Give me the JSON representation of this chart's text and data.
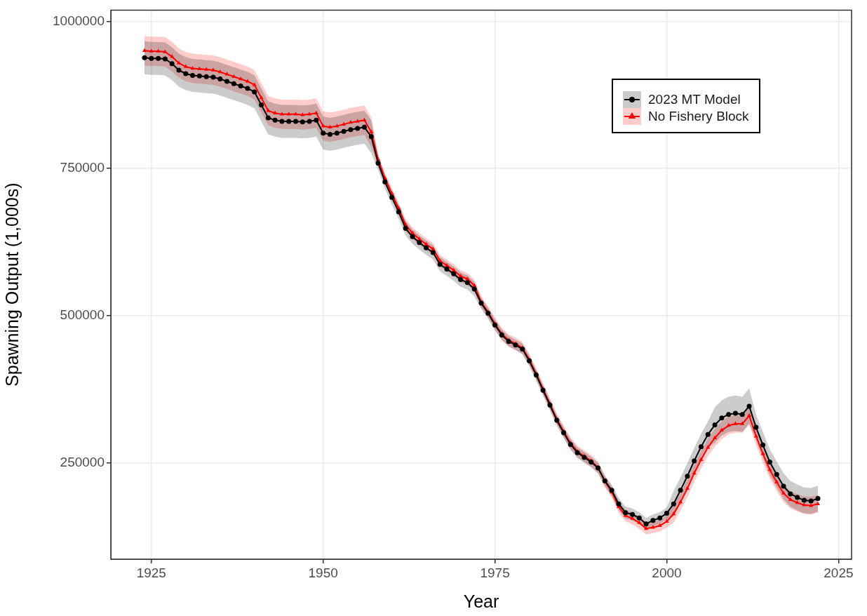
{
  "chart_data": {
    "type": "line",
    "xlabel": "Year",
    "ylabel": "Spawning Output (1,000s)",
    "x": [
      1924,
      1925,
      1926,
      1927,
      1928,
      1929,
      1930,
      1931,
      1932,
      1933,
      1934,
      1935,
      1936,
      1937,
      1938,
      1939,
      1940,
      1941,
      1942,
      1943,
      1944,
      1945,
      1946,
      1947,
      1948,
      1949,
      1950,
      1951,
      1952,
      1953,
      1954,
      1955,
      1956,
      1957,
      1958,
      1959,
      1960,
      1961,
      1962,
      1963,
      1964,
      1965,
      1966,
      1967,
      1968,
      1969,
      1970,
      1971,
      1972,
      1973,
      1974,
      1975,
      1976,
      1977,
      1978,
      1979,
      1980,
      1981,
      1982,
      1983,
      1984,
      1985,
      1986,
      1987,
      1988,
      1989,
      1990,
      1991,
      1992,
      1993,
      1994,
      1995,
      1996,
      1997,
      1998,
      1999,
      2000,
      2001,
      2002,
      2003,
      2004,
      2005,
      2006,
      2007,
      2008,
      2009,
      2010,
      2011,
      2012,
      2013,
      2014,
      2015,
      2016,
      2017,
      2018,
      2019,
      2020,
      2021,
      2022
    ],
    "series": [
      {
        "name": "2023 MT Model",
        "color": "#000000",
        "marker": "circle",
        "values": [
          938000,
          937000,
          937000,
          936000,
          928000,
          917000,
          911000,
          908000,
          907000,
          906000,
          905000,
          902000,
          898000,
          894000,
          890000,
          886000,
          880000,
          858000,
          836000,
          832000,
          830000,
          830000,
          830000,
          829000,
          830000,
          832000,
          810000,
          808000,
          810000,
          813000,
          816000,
          818000,
          820000,
          804000,
          759000,
          727000,
          701000,
          676000,
          648000,
          634000,
          624000,
          615000,
          607000,
          587000,
          579000,
          571000,
          561000,
          556000,
          545000,
          521000,
          504000,
          484000,
          467000,
          456000,
          450000,
          443000,
          423000,
          399000,
          373000,
          348000,
          322000,
          301000,
          281000,
          267000,
          259000,
          251000,
          241000,
          219000,
          203000,
          180000,
          165000,
          162000,
          156000,
          146000,
          152000,
          156000,
          164000,
          180000,
          203000,
          227000,
          253000,
          277000,
          298000,
          314000,
          326000,
          332000,
          334000,
          332000,
          346000,
          310000,
          280000,
          251000,
          230000,
          210000,
          197000,
          191000,
          186000,
          185000,
          189000
        ],
        "lower": [
          910000,
          909000,
          909000,
          908000,
          900000,
          889000,
          883000,
          880000,
          879000,
          878000,
          877000,
          874000,
          870000,
          866000,
          862000,
          858000,
          852000,
          830000,
          808000,
          804000,
          802000,
          802000,
          802000,
          801000,
          802000,
          804000,
          782000,
          780000,
          782000,
          785000,
          788000,
          790000,
          792000,
          776000,
          747000,
          715000,
          689000,
          664000,
          636000,
          622000,
          612000,
          603000,
          595000,
          575000,
          567000,
          559000,
          549000,
          544000,
          533000,
          512000,
          495000,
          475000,
          458000,
          447000,
          441000,
          434000,
          414000,
          390000,
          364000,
          339000,
          313000,
          292000,
          272000,
          258000,
          250000,
          242000,
          232000,
          210000,
          194000,
          170000,
          155000,
          152000,
          146000,
          136000,
          142000,
          146000,
          154000,
          158000,
          181000,
          205000,
          231000,
          255000,
          276000,
          284000,
          296000,
          302000,
          304000,
          302000,
          316000,
          288000,
          258000,
          229000,
          208000,
          188000,
          175000,
          169000,
          164000,
          163000,
          167000
        ],
        "upper": [
          966000,
          965000,
          965000,
          964000,
          956000,
          945000,
          939000,
          936000,
          935000,
          934000,
          933000,
          930000,
          926000,
          922000,
          918000,
          914000,
          908000,
          886000,
          864000,
          860000,
          858000,
          858000,
          858000,
          857000,
          858000,
          860000,
          838000,
          836000,
          838000,
          841000,
          844000,
          846000,
          848000,
          832000,
          771000,
          739000,
          713000,
          688000,
          660000,
          646000,
          636000,
          627000,
          619000,
          599000,
          591000,
          583000,
          573000,
          568000,
          557000,
          530000,
          513000,
          493000,
          476000,
          465000,
          459000,
          452000,
          432000,
          408000,
          382000,
          357000,
          331000,
          310000,
          290000,
          276000,
          268000,
          260000,
          250000,
          228000,
          212000,
          190000,
          175000,
          172000,
          166000,
          156000,
          162000,
          166000,
          174000,
          202000,
          225000,
          249000,
          275000,
          299000,
          320000,
          344000,
          356000,
          362000,
          364000,
          362000,
          376000,
          332000,
          302000,
          273000,
          252000,
          232000,
          219000,
          213000,
          208000,
          207000,
          211000
        ]
      },
      {
        "name": "No Fishery Block",
        "color": "#ff0000",
        "marker": "triangle",
        "values": [
          950000,
          949000,
          949000,
          948000,
          940000,
          929000,
          923000,
          920000,
          919000,
          918000,
          917000,
          914000,
          910000,
          906000,
          902000,
          898000,
          892000,
          870000,
          848000,
          844000,
          842000,
          842000,
          842000,
          841000,
          842000,
          844000,
          822000,
          820000,
          822000,
          825000,
          828000,
          830000,
          832000,
          812000,
          765000,
          733000,
          707000,
          682000,
          654000,
          640000,
          630000,
          621000,
          613000,
          593000,
          585000,
          577000,
          567000,
          562000,
          551000,
          523000,
          506000,
          486000,
          469000,
          458000,
          452000,
          445000,
          425000,
          401000,
          375000,
          350000,
          324000,
          303000,
          283000,
          269000,
          261000,
          253000,
          242000,
          218000,
          200000,
          175000,
          160000,
          155000,
          148000,
          138000,
          140000,
          143000,
          150000,
          163000,
          183000,
          206000,
          232000,
          255000,
          276000,
          292000,
          305000,
          313000,
          316000,
          316000,
          330000,
          295000,
          265000,
          238000,
          217000,
          198000,
          187000,
          182000,
          178000,
          177000,
          180000
        ],
        "lower": [
          925000,
          924000,
          924000,
          923000,
          915000,
          904000,
          898000,
          895000,
          894000,
          893000,
          892000,
          889000,
          885000,
          881000,
          877000,
          873000,
          867000,
          845000,
          823000,
          819000,
          817000,
          817000,
          817000,
          816000,
          817000,
          819000,
          797000,
          795000,
          797000,
          800000,
          803000,
          805000,
          807000,
          787000,
          755000,
          723000,
          697000,
          672000,
          644000,
          630000,
          620000,
          611000,
          603000,
          583000,
          575000,
          567000,
          557000,
          552000,
          541000,
          513000,
          496000,
          476000,
          459000,
          448000,
          442000,
          435000,
          415000,
          391000,
          365000,
          340000,
          314000,
          293000,
          273000,
          259000,
          251000,
          243000,
          232000,
          208000,
          190000,
          165000,
          150000,
          145000,
          138000,
          128000,
          130000,
          133000,
          140000,
          148000,
          168000,
          191000,
          217000,
          240000,
          261000,
          277000,
          290000,
          298000,
          301000,
          301000,
          315000,
          280000,
          250000,
          223000,
          202000,
          183000,
          172000,
          167000,
          163000,
          162000,
          165000
        ],
        "upper": [
          975000,
          974000,
          974000,
          973000,
          965000,
          954000,
          948000,
          945000,
          944000,
          943000,
          942000,
          939000,
          935000,
          931000,
          927000,
          923000,
          917000,
          895000,
          873000,
          869000,
          867000,
          867000,
          867000,
          866000,
          867000,
          869000,
          847000,
          845000,
          847000,
          850000,
          853000,
          855000,
          857000,
          837000,
          775000,
          743000,
          717000,
          692000,
          664000,
          650000,
          640000,
          631000,
          623000,
          603000,
          595000,
          587000,
          577000,
          572000,
          561000,
          533000,
          516000,
          496000,
          479000,
          468000,
          462000,
          455000,
          435000,
          411000,
          385000,
          360000,
          334000,
          313000,
          293000,
          279000,
          271000,
          263000,
          252000,
          228000,
          210000,
          185000,
          170000,
          165000,
          158000,
          148000,
          150000,
          153000,
          160000,
          178000,
          198000,
          221000,
          247000,
          270000,
          291000,
          307000,
          320000,
          328000,
          331000,
          331000,
          345000,
          310000,
          280000,
          253000,
          232000,
          213000,
          202000,
          197000,
          193000,
          192000,
          195000
        ]
      }
    ],
    "xlim": [
      1919.1,
      2026.9
    ],
    "ylim": [
      86000,
      1019000
    ],
    "xticks": [
      1925,
      1950,
      1975,
      2000,
      2025
    ],
    "yticks": [
      250000,
      500000,
      750000,
      1000000
    ],
    "grid": true,
    "legend": "top right"
  }
}
